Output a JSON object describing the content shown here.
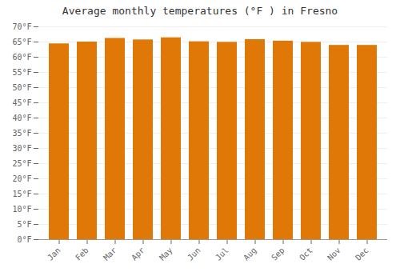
{
  "chart_data": {
    "type": "bar",
    "title": "Average monthly temperatures (°F ) in Fresno",
    "categories": [
      "Jan",
      "Feb",
      "Mar",
      "Apr",
      "May",
      "Jun",
      "Jul",
      "Aug",
      "Sep",
      "Oct",
      "Nov",
      "Dec"
    ],
    "values": [
      64.4,
      65.0,
      66.2,
      65.7,
      66.4,
      65.1,
      64.9,
      65.8,
      65.3,
      64.9,
      63.9,
      63.9
    ],
    "color": "#E07808",
    "ylim": [
      0,
      70
    ],
    "yticks": [
      {
        "value": 0,
        "label": "0°F"
      },
      {
        "value": 5,
        "label": "5°F"
      },
      {
        "value": 10,
        "label": "10°F"
      },
      {
        "value": 15,
        "label": "15°F"
      },
      {
        "value": 20,
        "label": "20°F"
      },
      {
        "value": 25,
        "label": "25°F"
      },
      {
        "value": 30,
        "label": "30°F"
      },
      {
        "value": 35,
        "label": "35°F"
      },
      {
        "value": 40,
        "label": "40°F"
      },
      {
        "value": 45,
        "label": "45°F"
      },
      {
        "value": 50,
        "label": "50°F"
      },
      {
        "value": 55,
        "label": "55°F"
      },
      {
        "value": 60,
        "label": "60°F"
      },
      {
        "value": 65,
        "label": "65°F"
      },
      {
        "value": 70,
        "label": "70°F"
      }
    ],
    "grid": true
  }
}
